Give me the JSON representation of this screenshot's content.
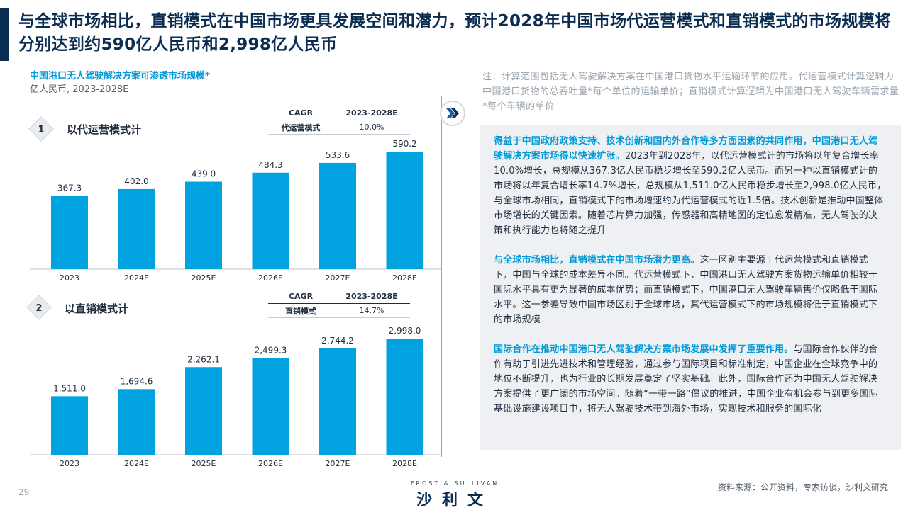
{
  "headline": "与全球市场相比，直销模式在中国市场更具发展空间和潜力，预计2028年中国市场代运营模式和直销模式的市场规模将分别达到约590亿人民币和2,998亿人民币",
  "left_panel": {
    "title": "中国港口无人驾驶解决方案可渗透市场规模*",
    "subtitle": "亿人民币, 2023-2028E"
  },
  "colors": {
    "navy": "#0b2d52",
    "bar": "#00a3e0",
    "accent": "#009ad8",
    "panel_bg": "#eef0f3"
  },
  "chart_data": [
    {
      "type": "bar",
      "badge": "1",
      "label": "以代运营模式计",
      "categories": [
        "2023",
        "2024E",
        "2025E",
        "2026E",
        "2027E",
        "2028E"
      ],
      "values": [
        367.3,
        402.0,
        439.0,
        484.3,
        533.6,
        590.2
      ],
      "value_labels": [
        "367.3",
        "402.0",
        "439.0",
        "484.3",
        "533.6",
        "590.2"
      ],
      "cagr_table": {
        "h1": "CAGR",
        "h2": "2023-2028E",
        "row_label": "代运营模式",
        "row_value": "10.0%"
      },
      "ylim": [
        0,
        590.2
      ]
    },
    {
      "type": "bar",
      "badge": "2",
      "label": "以直销模式计",
      "categories": [
        "2023",
        "2024E",
        "2025E",
        "2026E",
        "2027E",
        "2028E"
      ],
      "values": [
        1511.0,
        1694.6,
        2262.1,
        2499.3,
        2744.2,
        2998.0
      ],
      "value_labels": [
        "1,511.0",
        "1,694.6",
        "2,262.1",
        "2,499.3",
        "2,744.2",
        "2,998.0"
      ],
      "cagr_table": {
        "h1": "CAGR",
        "h2": "2023-2028E",
        "row_label": "直销模式",
        "row_value": "14.7%"
      },
      "ylim": [
        0,
        2998.0
      ]
    }
  ],
  "note": "注：计算范围包括无人驾驶解决方案在中国港口货物水平运输环节的应用。代运营模式计算逻辑为中国港口货物的总吞吐量*每个单位的运输单价；直销模式计算逻辑为中国港口无人驾驶车辆需求量*每个车辆的单价",
  "paragraphs": [
    {
      "highlight": "得益于中国政府政策支持、技术创新和国内外合作等多方面因素的共同作用，中国港口无人驾驶解决方案市场得以快速扩张。",
      "body": "2023年到2028年，以代运营模式计的市场将以年复合增长率10.0%增长，总规模从367.3亿人民币稳步增长至590.2亿人民币。而另一种以直销模式计的市场将以年复合增长率14.7%增长，总规模从1,511.0亿人民币稳步增长至2,998.0亿人民币，与全球市场相同，直销模式下的市场增速约为代运营模式的近1.5倍。技术创新是推动中国整体市场增长的关键因素。随着芯片算力加强，传感器和高精地图的定位愈发精准，无人驾驶的决策和执行能力也将随之提升"
    },
    {
      "highlight": "与全球市场相比，直销模式在中国市场潜力更高。",
      "body": "这一区别主要源于代运营模式和直销模式下，中国与全球的成本差异不同。代运营模式下，中国港口无人驾驶方案货物运输单价相较于国际水平具有更为显著的成本优势；而直销模式下，中国港口无人驾驶车辆售价仅略低于国际水平。这一参差导致中国市场区别于全球市场，其代运营模式下的市场规模将低于直销模式下的市场规模"
    },
    {
      "highlight": "国际合作在推动中国港口无人驾驶解决方案市场发展中发挥了重要作用。",
      "body": "与国际合作伙伴的合作有助于引进先进技术和管理经验，通过参与国际项目和标准制定，中国企业在全球竞争中的地位不断提升，也为行业的长期发展奠定了坚实基础。此外，国际合作还为中国无人驾驶解决方案提供了更广阔的市场空间。随着“一带一路”倡议的推进，中国企业有机会参与到更多国际基础设施建设项目中，将无人驾驶技术带到海外市场，实现技术和服务的国际化"
    }
  ],
  "footer": {
    "page_number": "29",
    "logo_small": "FROST & SULLIVAN",
    "logo_main": "沙利文",
    "source": "资料来源：公开资料，专家访谈，沙利文研究"
  }
}
